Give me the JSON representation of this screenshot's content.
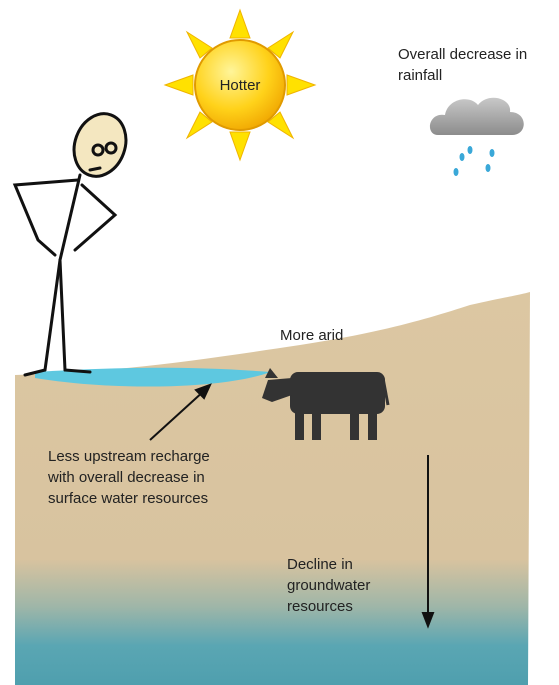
{
  "sun": {
    "label": "Hotter"
  },
  "cloud": {
    "label_lines": [
      "Overall decrease in",
      "rainfall"
    ]
  },
  "surface": {
    "label": "More arid"
  },
  "recharge": {
    "label_lines": [
      "Less upstream recharge",
      "with overall decrease in",
      "surface water resources"
    ]
  },
  "groundwater": {
    "label_lines": [
      "Decline in",
      "groundwater",
      "resources"
    ]
  }
}
